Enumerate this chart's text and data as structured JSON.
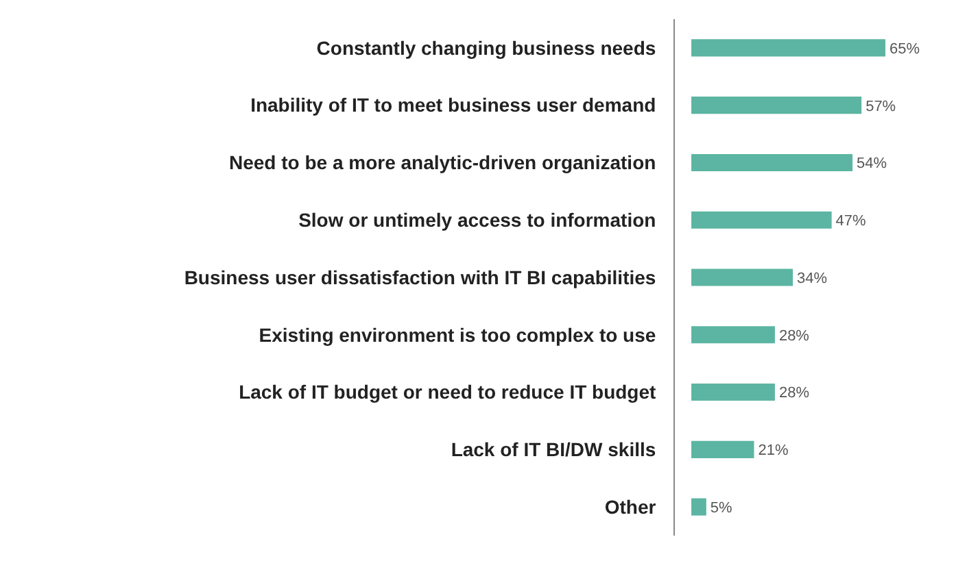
{
  "chart_data": {
    "type": "bar",
    "orientation": "horizontal",
    "categories": [
      "Constantly changing business needs",
      "Inability of IT to meet business user demand",
      "Need to be a more analytic-driven organization",
      "Slow or untimely access to information",
      "Business user dissatisfaction with IT BI capabilities",
      "Existing environment is too complex to use",
      "Lack of IT budget or need to reduce IT budget",
      "Lack of IT BI/DW skills",
      "Other"
    ],
    "values": [
      65,
      57,
      54,
      47,
      34,
      28,
      28,
      21,
      5
    ],
    "value_labels": [
      "65%",
      "57%",
      "54%",
      "47%",
      "34%",
      "28%",
      "28%",
      "21%",
      "5%"
    ],
    "color": "#5bb5a2"
  }
}
